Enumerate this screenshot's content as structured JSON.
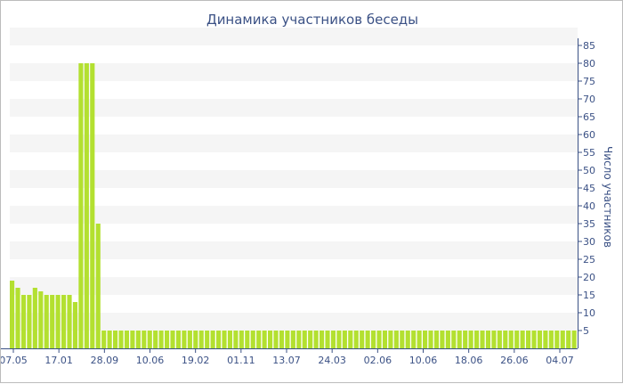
{
  "chart_data": {
    "type": "bar",
    "title": "Динамика участников беседы",
    "xlabel": "",
    "ylabel": "Число участников",
    "ylim": [
      0,
      85
    ],
    "y_ticks": [
      5,
      10,
      15,
      20,
      25,
      30,
      35,
      40,
      45,
      50,
      55,
      60,
      65,
      70,
      75,
      80,
      85
    ],
    "x_ticks": [
      "07.05",
      "17.01",
      "28.09",
      "10.06",
      "19.02",
      "01.11",
      "13.07",
      "24.03",
      "02.06",
      "10.06",
      "18.06",
      "26.06",
      "04.07"
    ],
    "values": [
      19,
      17,
      15,
      15,
      17,
      16,
      15,
      15,
      15,
      15,
      15,
      13,
      80,
      80,
      80,
      35,
      5,
      5,
      5,
      5,
      5,
      5,
      5,
      5,
      5,
      5,
      5,
      5,
      5,
      5,
      5,
      5,
      5,
      5,
      5,
      5,
      5,
      5,
      5,
      5,
      5,
      5,
      5,
      5,
      5,
      5,
      5,
      5,
      5,
      5,
      5,
      5,
      5,
      5,
      5,
      5,
      5,
      5,
      5,
      5,
      5,
      5,
      5,
      5,
      5,
      5,
      5,
      5,
      5,
      5,
      5,
      5,
      5,
      5,
      5,
      5,
      5,
      5,
      5,
      5,
      5,
      5,
      5,
      5,
      5,
      5,
      5,
      5,
      5,
      5,
      5,
      5,
      5,
      5,
      5,
      5,
      5,
      5,
      5
    ],
    "bar_color": "#b3e030",
    "grid": "horizontal bands",
    "axis_side": "right"
  }
}
